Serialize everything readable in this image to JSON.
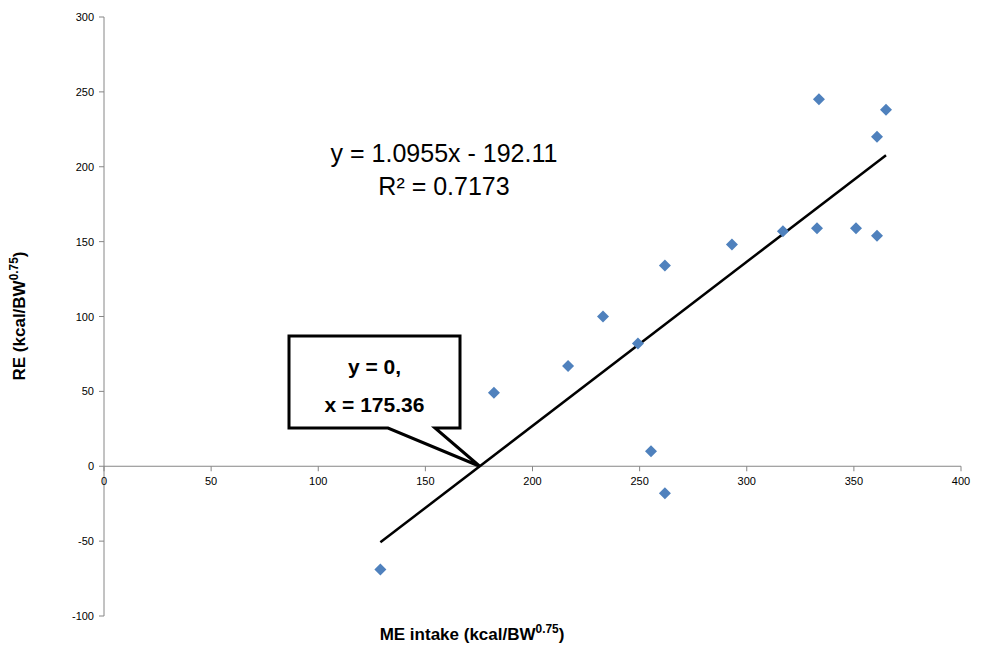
{
  "chart_data": {
    "type": "scatter",
    "xlabel": [
      "ME intake (kcal/BW",
      "0.75",
      ")"
    ],
    "ylabel": [
      "RE (kcal/BW",
      "0.75",
      ")"
    ],
    "x": [
      129,
      182,
      216.6,
      232.9,
      249.2,
      255.3,
      261.8,
      261.8,
      293.1,
      316.9,
      333.7,
      332.8,
      351,
      360.8,
      360.8,
      365
    ],
    "values": [
      -69,
      49,
      67,
      100,
      82,
      10,
      134,
      -18,
      148,
      157,
      245,
      159,
      159,
      220,
      154,
      238
    ],
    "color": "#4f81bd",
    "marker": "diamond",
    "xlim": [
      0,
      400
    ],
    "xticks": [
      0,
      50,
      100,
      150,
      200,
      250,
      300,
      350,
      400
    ],
    "ylim": [
      -100,
      300
    ],
    "yticks": [
      -100,
      -50,
      0,
      50,
      100,
      150,
      200,
      250,
      300
    ],
    "grid": false,
    "trendline": {
      "slope": 1.0955,
      "intercept": -192.11,
      "label": "y = 1.0955x - 192.11",
      "r2_label": "R² = 0.7173"
    },
    "annotation": {
      "lines": [
        "y = 0,",
        "x = 175.36"
      ],
      "x": 175.36,
      "y": 0
    }
  }
}
